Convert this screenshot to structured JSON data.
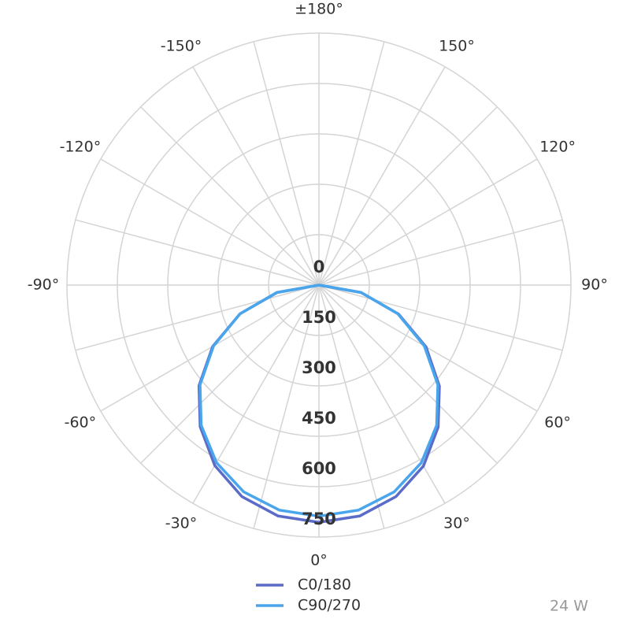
{
  "chart_data": {
    "type": "polar",
    "theta": [
      -90,
      -80,
      -70,
      -60,
      -50,
      -40,
      -30,
      -20,
      -10,
      0,
      10,
      20,
      30,
      40,
      50,
      60,
      70,
      80,
      90
    ],
    "series": [
      {
        "name": "C0/180",
        "color": "#5b6cc8",
        "values": [
          0,
          126,
          250,
          365,
          466,
          550,
          620,
          670,
          698,
          706,
          698,
          670,
          622,
          552,
          468,
          368,
          252,
          127,
          0
        ]
      },
      {
        "name": "C90/270",
        "color": "#49a6ec",
        "values": [
          0,
          128,
          250,
          362,
          462,
          545,
          610,
          655,
          680,
          688,
          680,
          655,
          610,
          545,
          462,
          362,
          250,
          128,
          0
        ]
      }
    ],
    "rlim": [
      0,
      750
    ],
    "rticks": [
      0,
      150,
      300,
      450,
      600,
      750
    ],
    "thetaticks": [
      {
        "value": 0,
        "label": "0°"
      },
      {
        "value": 30,
        "label": "30°"
      },
      {
        "value": 60,
        "label": "60°"
      },
      {
        "value": 90,
        "label": "90°"
      },
      {
        "value": 120,
        "label": "120°"
      },
      {
        "value": 150,
        "label": "150°"
      },
      {
        "value": 180,
        "label": "±180°"
      },
      {
        "value": -150,
        "label": "-150°"
      },
      {
        "value": -120,
        "label": "-120°"
      },
      {
        "value": -90,
        "label": "-90°"
      },
      {
        "value": -60,
        "label": "-60°"
      },
      {
        "value": -30,
        "label": "-30°"
      }
    ],
    "theta_minor_ticks": [
      15,
      45,
      75,
      105,
      135,
      165,
      -165,
      -135,
      -105,
      -75,
      -45,
      -15
    ],
    "grid": true,
    "note": "24 W"
  }
}
